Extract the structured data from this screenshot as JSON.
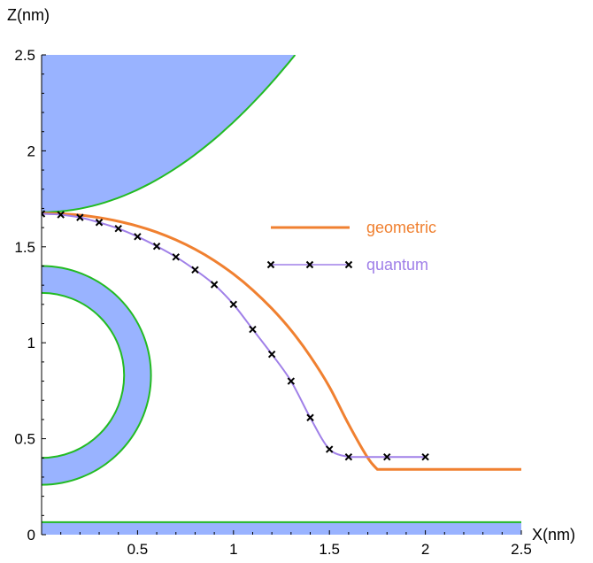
{
  "chart_data": {
    "type": "line",
    "xlabel": "X(nm)",
    "ylabel": "Z(nm)",
    "xlim": [
      0,
      2.5
    ],
    "ylim": [
      0,
      2.5
    ],
    "x_ticks": [
      "0.5",
      "1",
      "1.5",
      "2",
      "2.5"
    ],
    "y_ticks": [
      "0",
      "0.5",
      "1",
      "1.5",
      "2",
      "2.5"
    ],
    "grid": false,
    "legend_placement": "center-right",
    "series": [
      {
        "name": "geometric",
        "color": "#f08030",
        "marker": "none",
        "points": [
          [
            0.0,
            1.675
          ],
          [
            0.1,
            1.672
          ],
          [
            0.2,
            1.665
          ],
          [
            0.3,
            1.652
          ],
          [
            0.4,
            1.633
          ],
          [
            0.5,
            1.608
          ],
          [
            0.6,
            1.576
          ],
          [
            0.7,
            1.536
          ],
          [
            0.8,
            1.487
          ],
          [
            0.9,
            1.428
          ],
          [
            1.0,
            1.358
          ],
          [
            1.1,
            1.275
          ],
          [
            1.2,
            1.178
          ],
          [
            1.3,
            1.065
          ],
          [
            1.4,
            0.93
          ],
          [
            1.5,
            0.77
          ],
          [
            1.6,
            0.575
          ],
          [
            1.7,
            0.4
          ],
          [
            1.75,
            0.34
          ],
          [
            2.0,
            0.34
          ],
          [
            2.5,
            0.34
          ]
        ]
      },
      {
        "name": "quantum",
        "color": "#a080e8",
        "marker": "x",
        "points": [
          [
            0.0,
            1.672
          ],
          [
            0.1,
            1.667
          ],
          [
            0.2,
            1.653
          ],
          [
            0.3,
            1.627
          ],
          [
            0.4,
            1.595
          ],
          [
            0.5,
            1.553
          ],
          [
            0.6,
            1.503
          ],
          [
            0.7,
            1.447
          ],
          [
            0.8,
            1.38
          ],
          [
            0.9,
            1.303
          ],
          [
            1.0,
            1.2
          ],
          [
            1.1,
            1.07
          ],
          [
            1.2,
            0.94
          ],
          [
            1.3,
            0.8
          ],
          [
            1.4,
            0.61
          ],
          [
            1.5,
            0.445
          ],
          [
            1.6,
            0.405
          ],
          [
            1.8,
            0.405
          ],
          [
            2.0,
            0.405
          ]
        ]
      }
    ],
    "shapes": [
      {
        "kind": "tip",
        "fill": "#99b3ff",
        "stroke": "#22bb22",
        "z_apex": 1.68,
        "curvature": 0.47,
        "top_z": 2.5
      },
      {
        "kind": "ring",
        "fill": "#99b3ff",
        "stroke": "#22bb22",
        "center_z": 0.83,
        "inner_radius": 0.43,
        "outer_radius": 0.57
      },
      {
        "kind": "substrate",
        "fill": "#99b3ff",
        "stroke": "#22bb22",
        "top_z": 0.065
      }
    ]
  }
}
